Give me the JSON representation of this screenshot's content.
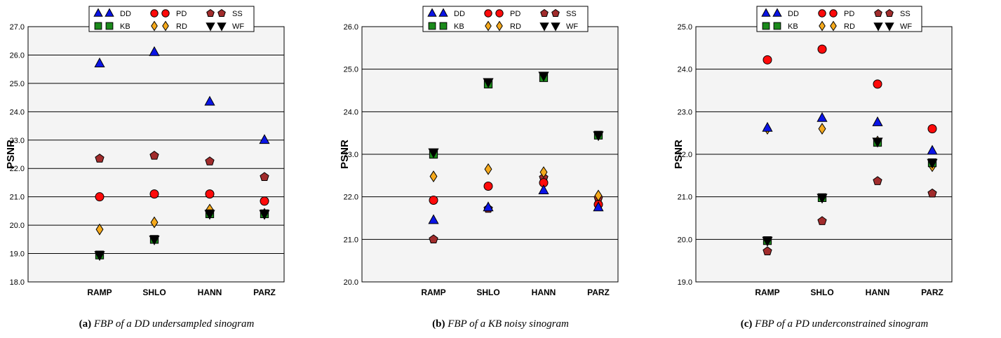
{
  "chart_data": [
    {
      "type": "scatter",
      "caption_label": "(a)",
      "caption_text": "FBP of a DD undersampled sinogram",
      "ylabel": "PSNR",
      "ylim": [
        18.0,
        27.0
      ],
      "yticks": [
        "18.0",
        "19.0",
        "20.0",
        "21.0",
        "22.0",
        "23.0",
        "24.0",
        "25.0",
        "26.0",
        "27.0"
      ],
      "categories": [
        "RAMP",
        "SHLO",
        "HANN",
        "PARZ"
      ],
      "series": [
        {
          "name": "DD",
          "values": [
            25.7,
            26.1,
            24.35,
            23.0
          ]
        },
        {
          "name": "PD",
          "values": [
            21.0,
            21.1,
            21.1,
            20.85
          ]
        },
        {
          "name": "SS",
          "values": [
            22.35,
            22.45,
            22.25,
            21.7
          ]
        },
        {
          "name": "KB",
          "values": [
            18.95,
            19.5,
            20.4,
            20.4
          ]
        },
        {
          "name": "RD",
          "values": [
            19.85,
            20.1,
            20.55,
            20.4
          ]
        },
        {
          "name": "WF",
          "values": [
            18.95,
            19.5,
            20.4,
            20.4
          ]
        }
      ]
    },
    {
      "type": "scatter",
      "caption_label": "(b)",
      "caption_text": "FBP of a KB noisy sinogram",
      "ylabel": "PSNR",
      "ylim": [
        20.0,
        26.0
      ],
      "yticks": [
        "20.0",
        "21.0",
        "22.0",
        "23.0",
        "24.0",
        "25.0",
        "26.0"
      ],
      "categories": [
        "RAMP",
        "SHLO",
        "HANN",
        "PARZ"
      ],
      "series": [
        {
          "name": "DD",
          "values": [
            21.45,
            21.75,
            22.15,
            21.75
          ]
        },
        {
          "name": "PD",
          "values": [
            21.92,
            22.25,
            22.33,
            21.82
          ]
        },
        {
          "name": "SS",
          "values": [
            21.0,
            21.72,
            22.45,
            21.97
          ]
        },
        {
          "name": "KB",
          "values": [
            23.0,
            24.65,
            24.8,
            23.45
          ]
        },
        {
          "name": "RD",
          "values": [
            22.48,
            22.65,
            22.58,
            22.03
          ]
        },
        {
          "name": "WF",
          "values": [
            23.05,
            24.7,
            24.85,
            23.45
          ]
        }
      ]
    },
    {
      "type": "scatter",
      "caption_label": "(c)",
      "caption_text": "FBP of a PD underconstrained sinogram",
      "ylabel": "PSNR",
      "ylim": [
        19.0,
        25.0
      ],
      "yticks": [
        "19.0",
        "20.0",
        "21.0",
        "22.0",
        "23.0",
        "24.0",
        "25.0"
      ],
      "categories": [
        "RAMP",
        "SHLO",
        "HANN",
        "PARZ"
      ],
      "series": [
        {
          "name": "DD",
          "values": [
            22.62,
            22.85,
            22.75,
            22.08
          ]
        },
        {
          "name": "PD",
          "values": [
            24.22,
            24.47,
            23.65,
            22.6
          ]
        },
        {
          "name": "SS",
          "values": [
            19.72,
            20.43,
            21.37,
            21.08
          ]
        },
        {
          "name": "KB",
          "values": [
            19.97,
            20.98,
            22.28,
            21.8
          ]
        },
        {
          "name": "RD",
          "values": [
            22.6,
            22.6,
            22.3,
            21.72
          ]
        },
        {
          "name": "WF",
          "values": [
            19.97,
            20.98,
            22.3,
            21.8
          ]
        }
      ]
    }
  ],
  "legend": [
    "DD",
    "PD",
    "SS",
    "KB",
    "RD",
    "WF"
  ],
  "colors": {
    "DD": "#0a14e6",
    "PD": "#ff0a0a",
    "SS": "#a12c2c",
    "KB": "#1b8a1b",
    "RD": "#f5a91c",
    "WF": "#000000"
  },
  "marker_shapes": {
    "DD": "triangle-up",
    "PD": "circle",
    "SS": "pentagon",
    "KB": "square",
    "RD": "diamond",
    "WF": "triangle-down"
  }
}
